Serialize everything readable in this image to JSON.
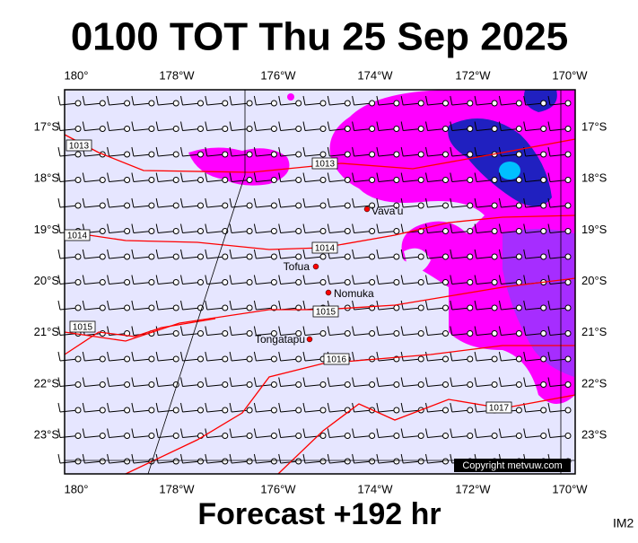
{
  "map": {
    "title": "0100 TOT Thu 25 Sep 2025",
    "lon_labels": [
      "180°",
      "178°W",
      "176°W",
      "174°W",
      "172°W",
      "170°W"
    ],
    "lat_labels": [
      "17°S",
      "18°S",
      "19°S",
      "20°S",
      "21°S",
      "22°S",
      "23°S"
    ],
    "isobar_labels": [
      "1013",
      "1013",
      "1014",
      "1014",
      "1015",
      "1015",
      "1016",
      "1017"
    ],
    "places": [
      "Vava'u",
      "Tofua",
      "Nomuka",
      "Tongatapu"
    ],
    "copyright": "Copyright metvuw.com",
    "footer": "Forecast +192 hr",
    "image_id": "IM2"
  }
}
